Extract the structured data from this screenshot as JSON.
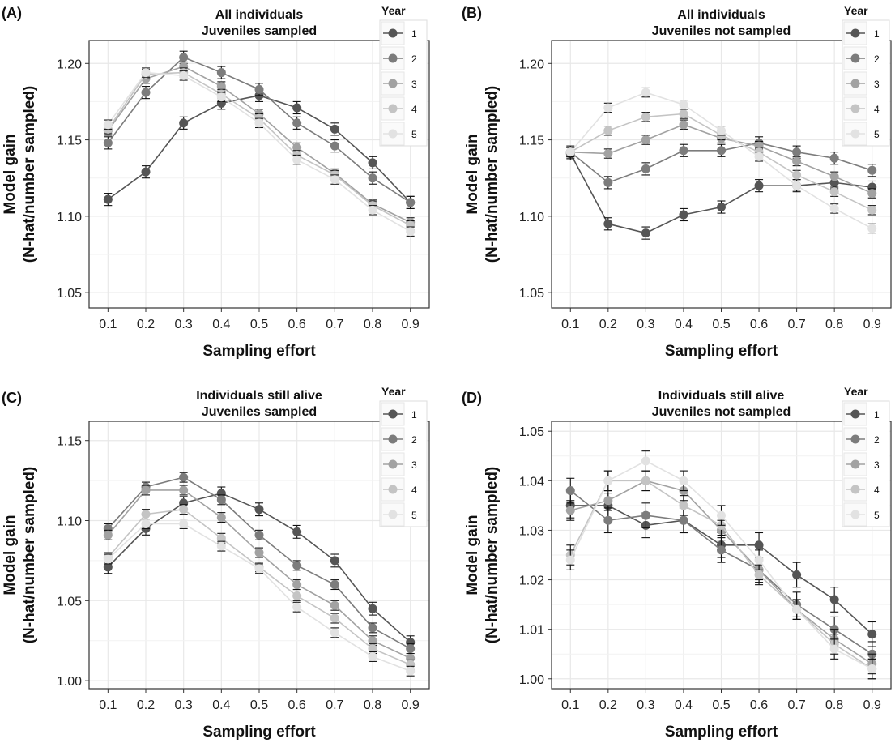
{
  "legend_title": "Year",
  "series_names": [
    "1",
    "2",
    "3",
    "4",
    "5"
  ],
  "colors": {
    "series": [
      "#555555",
      "#7c7c7c",
      "#a2a2a2",
      "#c4c4c4",
      "#e2e2e2"
    ],
    "grid": "#e8e8e8",
    "frame": "#333333",
    "errorbar": "#111111"
  },
  "chart_data": [
    {
      "type": "line",
      "panel": "(A)",
      "title": [
        "All individuals",
        "Juveniles sampled"
      ],
      "xlabel": "Sampling effort",
      "ylabel": [
        "Model gain",
        "(N-hat/number sampled)"
      ],
      "x": [
        0.1,
        0.2,
        0.3,
        0.4,
        0.5,
        0.6,
        0.7,
        0.8,
        0.9
      ],
      "xlim": [
        0.05,
        0.95
      ],
      "ylim": [
        1.04,
        1.215
      ],
      "yticks": [
        1.05,
        1.1,
        1.15,
        1.2
      ],
      "ytick_labels": [
        "1.05",
        "1.10",
        "1.15",
        "1.20"
      ],
      "grid": true,
      "legend": "top-right",
      "series": [
        {
          "name": "1",
          "values": [
            1.111,
            1.129,
            1.161,
            1.174,
            1.179,
            1.171,
            1.157,
            1.135,
            1.109
          ],
          "err": 0.004
        },
        {
          "name": "2",
          "values": [
            1.148,
            1.181,
            1.204,
            1.194,
            1.183,
            1.161,
            1.146,
            1.125,
            1.109
          ],
          "err": 0.004
        },
        {
          "name": "3",
          "values": [
            1.156,
            1.19,
            1.198,
            1.185,
            1.167,
            1.145,
            1.128,
            1.108,
            1.096
          ],
          "err": 0.003
        },
        {
          "name": "4",
          "values": [
            1.157,
            1.193,
            1.194,
            1.18,
            1.164,
            1.14,
            1.127,
            1.107,
            1.094
          ],
          "err": 0.003
        },
        {
          "name": "5",
          "values": [
            1.16,
            1.194,
            1.192,
            1.178,
            1.161,
            1.137,
            1.124,
            1.104,
            1.09
          ],
          "err": 0.003
        }
      ]
    },
    {
      "type": "line",
      "panel": "(B)",
      "title": [
        "All individuals",
        "Juveniles not sampled"
      ],
      "xlabel": "Sampling effort",
      "ylabel": [
        "Model gain",
        "(N-hat/number sampled)"
      ],
      "x": [
        0.1,
        0.2,
        0.3,
        0.4,
        0.5,
        0.6,
        0.7,
        0.8,
        0.9
      ],
      "xlim": [
        0.05,
        0.95
      ],
      "ylim": [
        1.04,
        1.215
      ],
      "yticks": [
        1.05,
        1.1,
        1.15,
        1.2
      ],
      "ytick_labels": [
        "1.05",
        "1.10",
        "1.15",
        "1.20"
      ],
      "grid": true,
      "legend": "top-right",
      "series": [
        {
          "name": "1",
          "values": [
            1.141,
            1.095,
            1.089,
            1.101,
            1.106,
            1.12,
            1.12,
            1.122,
            1.119
          ],
          "err": 0.004
        },
        {
          "name": "2",
          "values": [
            1.142,
            1.122,
            1.131,
            1.143,
            1.143,
            1.148,
            1.142,
            1.138,
            1.13
          ],
          "err": 0.004
        },
        {
          "name": "3",
          "values": [
            1.142,
            1.141,
            1.15,
            1.16,
            1.151,
            1.146,
            1.136,
            1.126,
            1.115
          ],
          "err": 0.003
        },
        {
          "name": "4",
          "values": [
            1.142,
            1.156,
            1.165,
            1.167,
            1.153,
            1.142,
            1.127,
            1.116,
            1.104
          ],
          "err": 0.003
        },
        {
          "name": "5",
          "values": [
            1.142,
            1.171,
            1.181,
            1.173,
            1.156,
            1.139,
            1.12,
            1.105,
            1.092
          ],
          "err": 0.003
        }
      ]
    },
    {
      "type": "line",
      "panel": "(C)",
      "title": [
        "Individuals still alive",
        "Juveniles sampled"
      ],
      "xlabel": "Sampling effort",
      "ylabel": [
        "Model gain",
        "(N-hat/number sampled)"
      ],
      "x": [
        0.1,
        0.2,
        0.3,
        0.4,
        0.5,
        0.6,
        0.7,
        0.8,
        0.9
      ],
      "xlim": [
        0.05,
        0.95
      ],
      "ylim": [
        0.995,
        1.162
      ],
      "yticks": [
        1.0,
        1.05,
        1.1,
        1.15
      ],
      "ytick_labels": [
        "1.00",
        "1.05",
        "1.10",
        "1.15"
      ],
      "grid": true,
      "legend": "top-right",
      "series": [
        {
          "name": "1",
          "values": [
            1.071,
            1.095,
            1.111,
            1.117,
            1.107,
            1.093,
            1.075,
            1.045,
            1.024
          ],
          "err": 0.004
        },
        {
          "name": "2",
          "values": [
            1.095,
            1.121,
            1.127,
            1.113,
            1.091,
            1.072,
            1.06,
            1.033,
            1.02
          ],
          "err": 0.003
        },
        {
          "name": "3",
          "values": [
            1.091,
            1.119,
            1.119,
            1.102,
            1.08,
            1.06,
            1.047,
            1.025,
            1.014
          ],
          "err": 0.003
        },
        {
          "name": "4",
          "values": [
            1.077,
            1.104,
            1.107,
            1.089,
            1.071,
            1.053,
            1.039,
            1.02,
            1.01
          ],
          "err": 0.003
        },
        {
          "name": "5",
          "values": [
            1.076,
            1.098,
            1.098,
            1.084,
            1.07,
            1.046,
            1.03,
            1.015,
            1.006
          ],
          "err": 0.003
        }
      ]
    },
    {
      "type": "line",
      "panel": "(D)",
      "title": [
        "Individuals still alive",
        "Juveniles not sampled"
      ],
      "xlabel": "Sampling effort",
      "ylabel": [
        "Model gain",
        "(N-hat/number sampled)"
      ],
      "x": [
        0.1,
        0.2,
        0.3,
        0.4,
        0.5,
        0.6,
        0.7,
        0.8,
        0.9
      ],
      "xlim": [
        0.05,
        0.95
      ],
      "ylim": [
        0.998,
        1.052
      ],
      "yticks": [
        1.0,
        1.01,
        1.02,
        1.03,
        1.04,
        1.05
      ],
      "ytick_labels": [
        "1.00",
        "1.01",
        "1.02",
        "1.03",
        "1.04",
        "1.05"
      ],
      "grid": true,
      "legend": "top-right",
      "series": [
        {
          "name": "1",
          "values": [
            1.035,
            1.035,
            1.031,
            1.032,
            1.027,
            1.027,
            1.021,
            1.016,
            1.009
          ],
          "err": 0.0025
        },
        {
          "name": "2",
          "values": [
            1.038,
            1.032,
            1.033,
            1.032,
            1.026,
            1.022,
            1.015,
            1.01,
            1.005
          ],
          "err": 0.0025
        },
        {
          "name": "3",
          "values": [
            1.034,
            1.036,
            1.04,
            1.038,
            1.03,
            1.022,
            1.014,
            1.008,
            1.003
          ],
          "err": 0.002
        },
        {
          "name": "4",
          "values": [
            1.025,
            1.04,
            1.04,
            1.035,
            1.031,
            1.021,
            1.014,
            1.007,
            1.002
          ],
          "err": 0.002
        },
        {
          "name": "5",
          "values": [
            1.024,
            1.04,
            1.044,
            1.04,
            1.033,
            1.024,
            1.014,
            1.006,
            1.002
          ],
          "err": 0.002
        }
      ]
    }
  ]
}
